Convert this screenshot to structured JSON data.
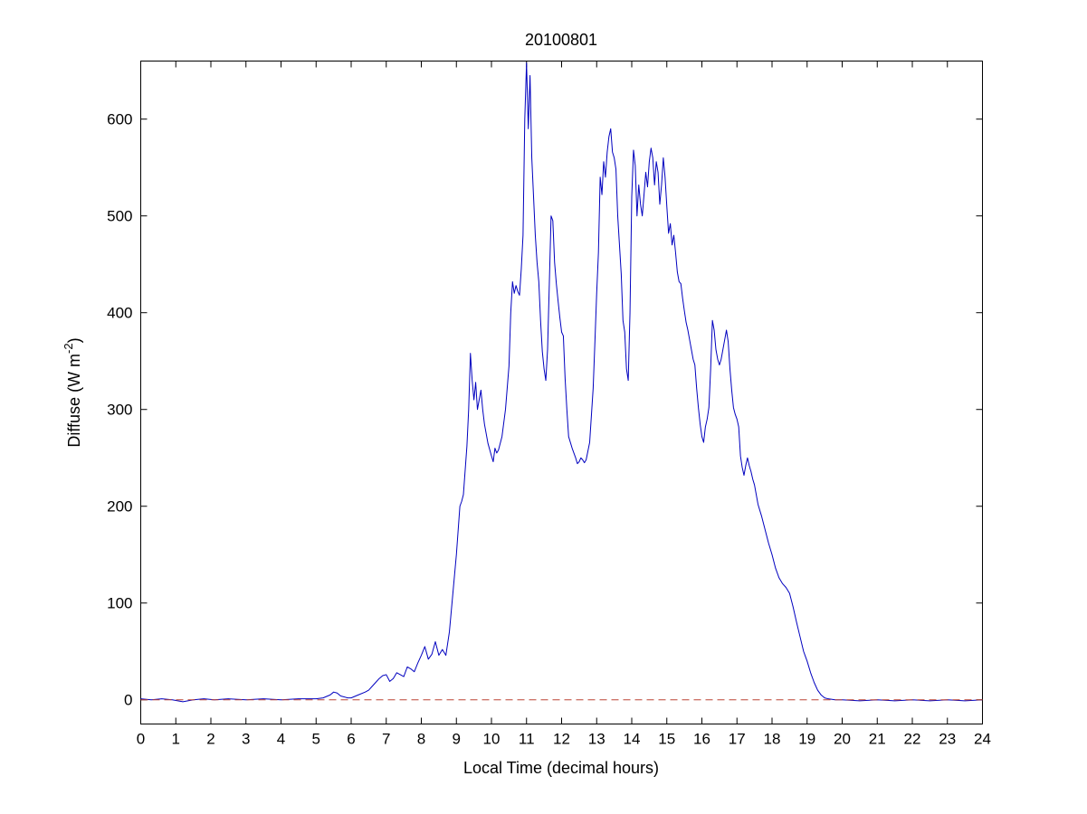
{
  "figure": {
    "background": "#ffffff"
  },
  "chart_data": {
    "type": "line",
    "title": "20100801",
    "xlabel": "Local Time (decimal hours)",
    "ylabel": {
      "main": "Diffuse (W m",
      "superscript": "-2",
      "close": ")"
    },
    "xlim": [
      0,
      24
    ],
    "ylim": [
      -25,
      660
    ],
    "xticks": [
      0,
      1,
      2,
      3,
      4,
      5,
      6,
      7,
      8,
      9,
      10,
      11,
      12,
      13,
      14,
      15,
      16,
      17,
      18,
      19,
      20,
      21,
      22,
      23,
      24
    ],
    "yticks": [
      0,
      100,
      200,
      300,
      400,
      500,
      600
    ],
    "grid": false,
    "legend": "none",
    "axis_color": "#000000",
    "series": [
      {
        "name": "diffuse-line",
        "color": "#0000bf",
        "style": "solid",
        "points": [
          [
            0,
            1
          ],
          [
            0.3,
            0
          ],
          [
            0.6,
            1
          ],
          [
            0.9,
            0
          ],
          [
            1.2,
            -2
          ],
          [
            1.5,
            0
          ],
          [
            1.8,
            1
          ],
          [
            2.1,
            0
          ],
          [
            2.5,
            1
          ],
          [
            3,
            0
          ],
          [
            3.5,
            1
          ],
          [
            4,
            0
          ],
          [
            4.5,
            1
          ],
          [
            5,
            1
          ],
          [
            5.2,
            2
          ],
          [
            5.4,
            5
          ],
          [
            5.5,
            8
          ],
          [
            5.6,
            7
          ],
          [
            5.7,
            4
          ],
          [
            5.9,
            2
          ],
          [
            6,
            2
          ],
          [
            6.2,
            5
          ],
          [
            6.4,
            8
          ],
          [
            6.5,
            10
          ],
          [
            6.6,
            14
          ],
          [
            6.7,
            18
          ],
          [
            6.8,
            22
          ],
          [
            6.9,
            25
          ],
          [
            7,
            26
          ],
          [
            7.1,
            19
          ],
          [
            7.2,
            22
          ],
          [
            7.3,
            28
          ],
          [
            7.4,
            26
          ],
          [
            7.5,
            24
          ],
          [
            7.6,
            34
          ],
          [
            7.7,
            32
          ],
          [
            7.8,
            29
          ],
          [
            7.9,
            38
          ],
          [
            8,
            46
          ],
          [
            8.1,
            55
          ],
          [
            8.2,
            42
          ],
          [
            8.3,
            47
          ],
          [
            8.4,
            60
          ],
          [
            8.5,
            46
          ],
          [
            8.6,
            52
          ],
          [
            8.7,
            46
          ],
          [
            8.8,
            70
          ],
          [
            8.9,
            110
          ],
          [
            9,
            150
          ],
          [
            9.1,
            200
          ],
          [
            9.15,
            205
          ],
          [
            9.2,
            212
          ],
          [
            9.3,
            262
          ],
          [
            9.35,
            300
          ],
          [
            9.4,
            358
          ],
          [
            9.45,
            330
          ],
          [
            9.5,
            310
          ],
          [
            9.55,
            328
          ],
          [
            9.6,
            300
          ],
          [
            9.65,
            310
          ],
          [
            9.7,
            320
          ],
          [
            9.75,
            300
          ],
          [
            9.8,
            285
          ],
          [
            9.9,
            265
          ],
          [
            10,
            252
          ],
          [
            10.05,
            246
          ],
          [
            10.1,
            260
          ],
          [
            10.15,
            255
          ],
          [
            10.2,
            258
          ],
          [
            10.3,
            272
          ],
          [
            10.4,
            300
          ],
          [
            10.5,
            345
          ],
          [
            10.55,
            400
          ],
          [
            10.6,
            432
          ],
          [
            10.65,
            420
          ],
          [
            10.7,
            428
          ],
          [
            10.75,
            422
          ],
          [
            10.8,
            418
          ],
          [
            10.85,
            445
          ],
          [
            10.9,
            480
          ],
          [
            10.95,
            600
          ],
          [
            11,
            658
          ],
          [
            11.05,
            590
          ],
          [
            11.1,
            645
          ],
          [
            11.15,
            560
          ],
          [
            11.2,
            520
          ],
          [
            11.25,
            480
          ],
          [
            11.3,
            452
          ],
          [
            11.35,
            432
          ],
          [
            11.4,
            392
          ],
          [
            11.45,
            360
          ],
          [
            11.5,
            342
          ],
          [
            11.55,
            330
          ],
          [
            11.6,
            362
          ],
          [
            11.65,
            430
          ],
          [
            11.7,
            500
          ],
          [
            11.75,
            495
          ],
          [
            11.8,
            452
          ],
          [
            11.85,
            430
          ],
          [
            11.9,
            412
          ],
          [
            11.95,
            395
          ],
          [
            12,
            380
          ],
          [
            12.05,
            376
          ],
          [
            12.1,
            332
          ],
          [
            12.15,
            300
          ],
          [
            12.2,
            272
          ],
          [
            12.3,
            260
          ],
          [
            12.4,
            250
          ],
          [
            12.45,
            244
          ],
          [
            12.5,
            246
          ],
          [
            12.55,
            250
          ],
          [
            12.6,
            248
          ],
          [
            12.65,
            245
          ],
          [
            12.7,
            248
          ],
          [
            12.8,
            266
          ],
          [
            12.9,
            322
          ],
          [
            12.95,
            370
          ],
          [
            13,
            420
          ],
          [
            13.05,
            462
          ],
          [
            13.1,
            540
          ],
          [
            13.15,
            522
          ],
          [
            13.2,
            556
          ],
          [
            13.25,
            540
          ],
          [
            13.3,
            566
          ],
          [
            13.35,
            582
          ],
          [
            13.4,
            590
          ],
          [
            13.45,
            566
          ],
          [
            13.5,
            560
          ],
          [
            13.55,
            548
          ],
          [
            13.6,
            500
          ],
          [
            13.65,
            470
          ],
          [
            13.7,
            440
          ],
          [
            13.75,
            392
          ],
          [
            13.8,
            380
          ],
          [
            13.85,
            342
          ],
          [
            13.9,
            330
          ],
          [
            13.95,
            400
          ],
          [
            14,
            520
          ],
          [
            14.05,
            568
          ],
          [
            14.1,
            552
          ],
          [
            14.15,
            500
          ],
          [
            14.2,
            532
          ],
          [
            14.25,
            512
          ],
          [
            14.3,
            500
          ],
          [
            14.35,
            522
          ],
          [
            14.4,
            545
          ],
          [
            14.45,
            530
          ],
          [
            14.5,
            556
          ],
          [
            14.55,
            570
          ],
          [
            14.6,
            560
          ],
          [
            14.65,
            532
          ],
          [
            14.7,
            556
          ],
          [
            14.75,
            545
          ],
          [
            14.8,
            512
          ],
          [
            14.85,
            532
          ],
          [
            14.9,
            560
          ],
          [
            14.95,
            540
          ],
          [
            15,
            510
          ],
          [
            15.05,
            482
          ],
          [
            15.1,
            492
          ],
          [
            15.15,
            470
          ],
          [
            15.2,
            480
          ],
          [
            15.25,
            462
          ],
          [
            15.3,
            442
          ],
          [
            15.35,
            432
          ],
          [
            15.4,
            430
          ],
          [
            15.45,
            415
          ],
          [
            15.5,
            402
          ],
          [
            15.55,
            390
          ],
          [
            15.6,
            382
          ],
          [
            15.65,
            372
          ],
          [
            15.7,
            362
          ],
          [
            15.75,
            352
          ],
          [
            15.8,
            346
          ],
          [
            15.85,
            322
          ],
          [
            15.9,
            302
          ],
          [
            15.95,
            285
          ],
          [
            16,
            272
          ],
          [
            16.05,
            266
          ],
          [
            16.1,
            282
          ],
          [
            16.15,
            290
          ],
          [
            16.2,
            302
          ],
          [
            16.25,
            342
          ],
          [
            16.3,
            392
          ],
          [
            16.35,
            382
          ],
          [
            16.4,
            362
          ],
          [
            16.45,
            352
          ],
          [
            16.5,
            346
          ],
          [
            16.55,
            352
          ],
          [
            16.6,
            362
          ],
          [
            16.65,
            372
          ],
          [
            16.7,
            382
          ],
          [
            16.75,
            370
          ],
          [
            16.8,
            342
          ],
          [
            16.85,
            320
          ],
          [
            16.9,
            302
          ],
          [
            16.95,
            295
          ],
          [
            17,
            290
          ],
          [
            17.05,
            282
          ],
          [
            17.1,
            252
          ],
          [
            17.15,
            240
          ],
          [
            17.2,
            232
          ],
          [
            17.25,
            242
          ],
          [
            17.3,
            250
          ],
          [
            17.35,
            242
          ],
          [
            17.4,
            236
          ],
          [
            17.45,
            228
          ],
          [
            17.5,
            222
          ],
          [
            17.6,
            202
          ],
          [
            17.7,
            190
          ],
          [
            17.8,
            176
          ],
          [
            17.9,
            162
          ],
          [
            18,
            150
          ],
          [
            18.1,
            136
          ],
          [
            18.2,
            126
          ],
          [
            18.3,
            120
          ],
          [
            18.4,
            116
          ],
          [
            18.5,
            110
          ],
          [
            18.6,
            96
          ],
          [
            18.7,
            80
          ],
          [
            18.8,
            65
          ],
          [
            18.9,
            50
          ],
          [
            19,
            40
          ],
          [
            19.1,
            28
          ],
          [
            19.2,
            18
          ],
          [
            19.3,
            10
          ],
          [
            19.4,
            5
          ],
          [
            19.5,
            2
          ],
          [
            19.6,
            1
          ],
          [
            19.8,
            0
          ],
          [
            20,
            0
          ],
          [
            20.5,
            -1
          ],
          [
            21,
            0
          ],
          [
            21.5,
            -1
          ],
          [
            22,
            0
          ],
          [
            22.5,
            -1
          ],
          [
            23,
            0
          ],
          [
            23.5,
            -1
          ],
          [
            24,
            0
          ]
        ]
      },
      {
        "name": "zero-reference-line",
        "color": "#bb4433",
        "style": "dashed",
        "points": [
          [
            0,
            0
          ],
          [
            24,
            0
          ]
        ]
      }
    ]
  }
}
